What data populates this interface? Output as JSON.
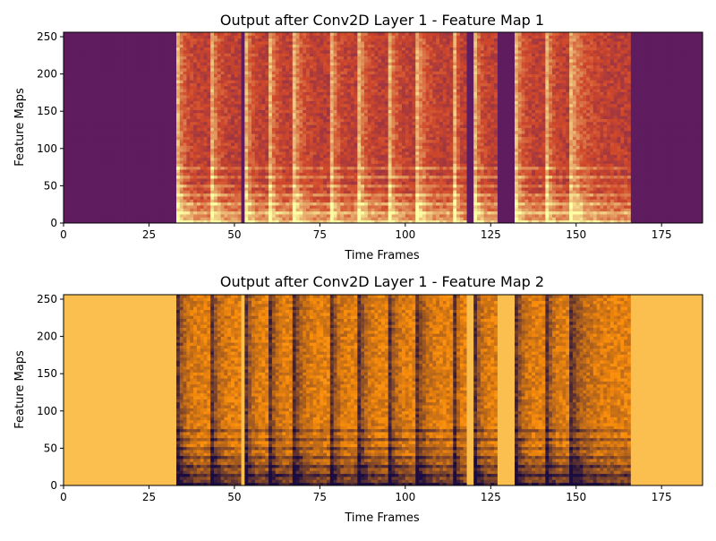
{
  "chart_data": [
    {
      "type": "heatmap",
      "title": "Output after Conv2D Layer 1 - Feature Map 1",
      "xlabel": "Time Frames",
      "ylabel": "Feature Maps",
      "xlim": [
        0,
        187
      ],
      "ylim": [
        0,
        256
      ],
      "xticks": [
        "0",
        "25",
        "50",
        "75",
        "100",
        "125",
        "150",
        "175"
      ],
      "yticks": [
        "0",
        "50",
        "100",
        "150",
        "200",
        "250"
      ],
      "colormap": "inferno",
      "background_level": 0.12,
      "band_gain": 1,
      "colors": {
        "low": "#3b0f70",
        "mid": "#d0482a",
        "high": "#fcffa4"
      },
      "speech_segments": [
        [
          33,
          43
        ],
        [
          43,
          52
        ],
        [
          53,
          60
        ],
        [
          60,
          67
        ],
        [
          67,
          78
        ],
        [
          78,
          86
        ],
        [
          86,
          95
        ],
        [
          95,
          103
        ],
        [
          103,
          114
        ],
        [
          114,
          118
        ],
        [
          120,
          127
        ],
        [
          132,
          141
        ],
        [
          141,
          148
        ],
        [
          148,
          166
        ]
      ]
    },
    {
      "type": "heatmap",
      "title": "Output after Conv2D Layer 1 - Feature Map 2",
      "xlabel": "Time Frames",
      "ylabel": "Feature Maps",
      "xlim": [
        0,
        187
      ],
      "ylim": [
        0,
        256
      ],
      "xticks": [
        "0",
        "25",
        "50",
        "75",
        "100",
        "125",
        "150",
        "175"
      ],
      "yticks": [
        "0",
        "50",
        "100",
        "150",
        "200",
        "250"
      ],
      "colormap": "inferno",
      "background_level": 0.72,
      "band_gain": -1,
      "colors": {
        "low": "#1b0c41",
        "mid": "#f98c0a",
        "high": "#fcffa4"
      },
      "speech_segments": [
        [
          33,
          43
        ],
        [
          43,
          52
        ],
        [
          53,
          60
        ],
        [
          60,
          67
        ],
        [
          67,
          78
        ],
        [
          78,
          86
        ],
        [
          86,
          95
        ],
        [
          95,
          103
        ],
        [
          103,
          114
        ],
        [
          114,
          118
        ],
        [
          120,
          127
        ],
        [
          132,
          141
        ],
        [
          141,
          148
        ],
        [
          148,
          166
        ]
      ]
    }
  ]
}
